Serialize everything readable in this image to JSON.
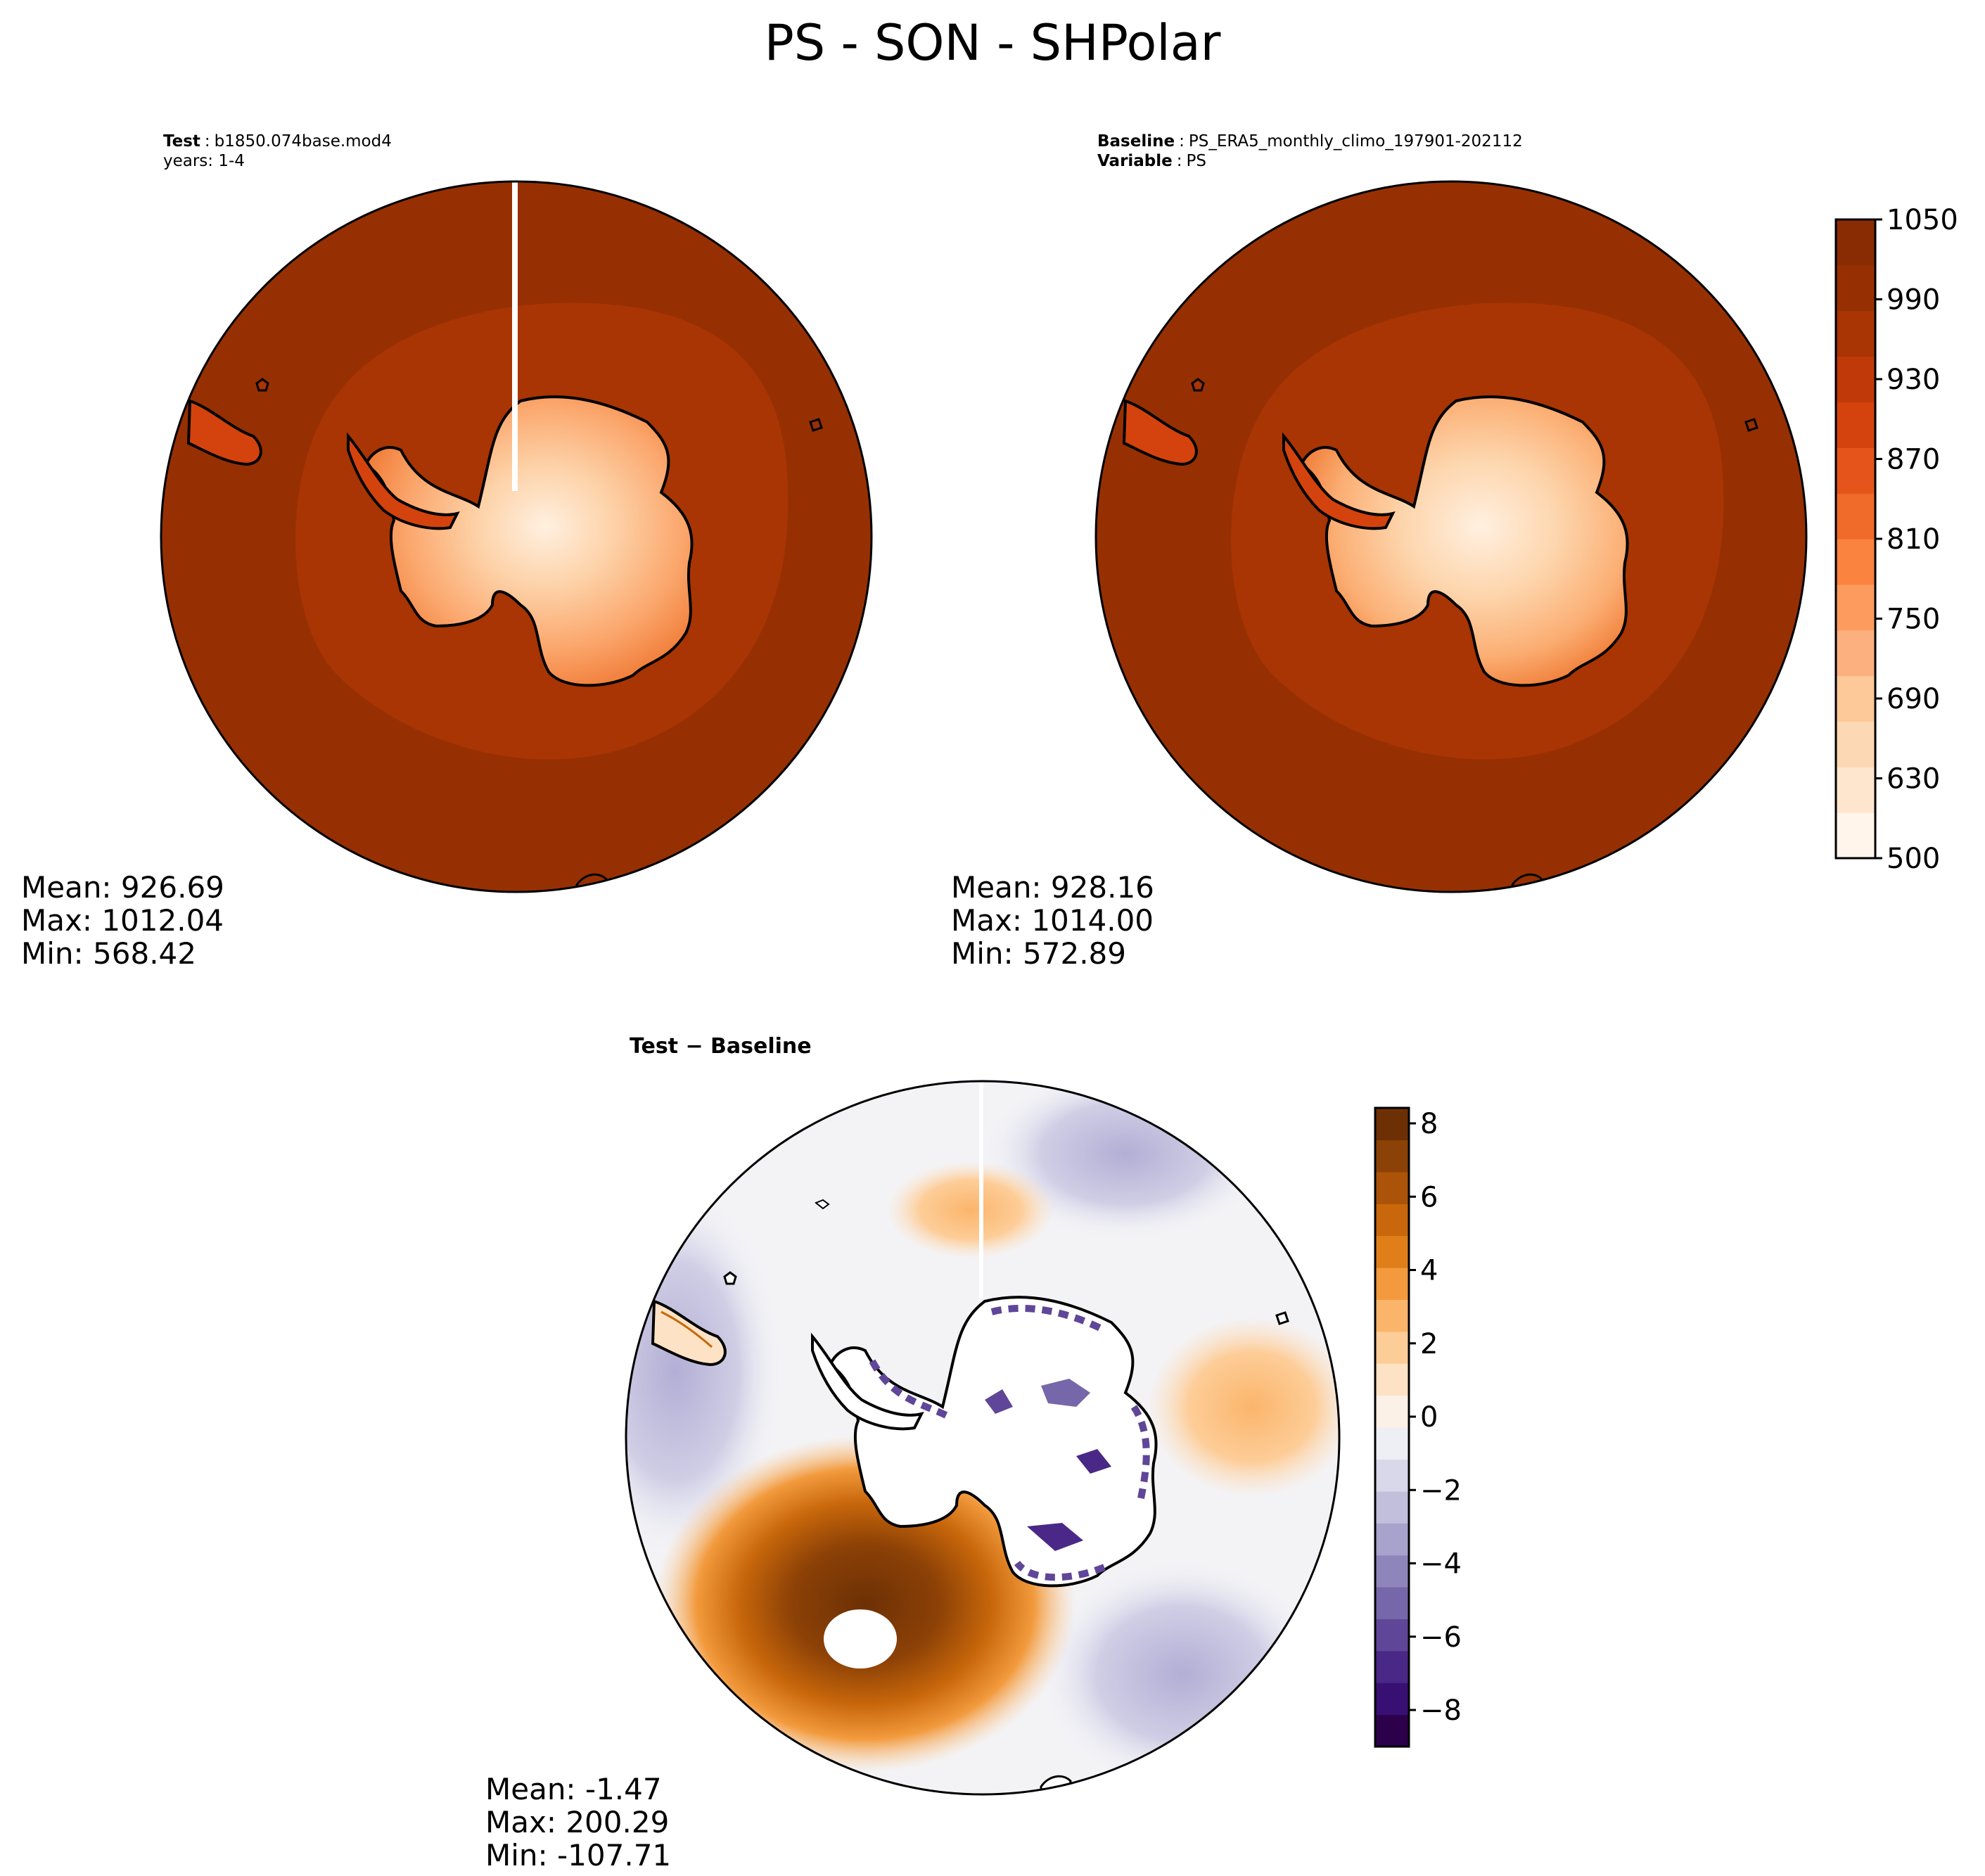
{
  "figure": {
    "title": "PS - SON - SHPolar"
  },
  "panels": {
    "test": {
      "label_key": "Test",
      "label_value": "b1850.074base.mod4",
      "subline": "years: 1-4",
      "stats": {
        "mean": "Mean: 926.69",
        "max": "Max: 1012.04",
        "min": "Min: 568.42"
      }
    },
    "baseline": {
      "label_key": "Baseline",
      "label_value": "PS_ERA5_monthly_climo_197901-202112",
      "variable_key": "Variable",
      "variable_value": "PS",
      "stats": {
        "mean": "Mean: 928.16",
        "max": "Max: 1014.00",
        "min": "Min: 572.89"
      }
    },
    "diff": {
      "title": "Test − Baseline",
      "stats": {
        "mean": "Mean: -1.47",
        "max": "Max: 200.29",
        "min": "Min: -107.71"
      }
    }
  },
  "colorbars": {
    "main": {
      "ticks": [
        "1050",
        "990",
        "930",
        "870",
        "810",
        "750",
        "690",
        "630",
        "500"
      ],
      "colors": [
        "#fff5eb",
        "#fee6ce",
        "#fdd8b4",
        "#fdc998",
        "#fdb07f",
        "#fd9b5f",
        "#f9833f",
        "#f06a2a",
        "#e5551b",
        "#d4430e",
        "#bf3a08",
        "#a83503",
        "#963002",
        "#8a2c03"
      ]
    },
    "diff": {
      "ticks": [
        "8",
        "6",
        "4",
        "2",
        "0",
        "−2",
        "−4",
        "−6",
        "−8"
      ],
      "pos_colors": [
        "#fbf1e6",
        "#fde2c5",
        "#fdcd98",
        "#fbb56b",
        "#f29a3d",
        "#e07f1a",
        "#c8670b",
        "#ab5308",
        "#8c4106",
        "#6d3005"
      ],
      "neg_colors": [
        "#eeeef5",
        "#d9d8ea",
        "#c1bfdc",
        "#a8a3cd",
        "#8e86bb",
        "#7666aa",
        "#5f4698",
        "#4a2887",
        "#380f73",
        "#2d004b"
      ]
    }
  }
}
